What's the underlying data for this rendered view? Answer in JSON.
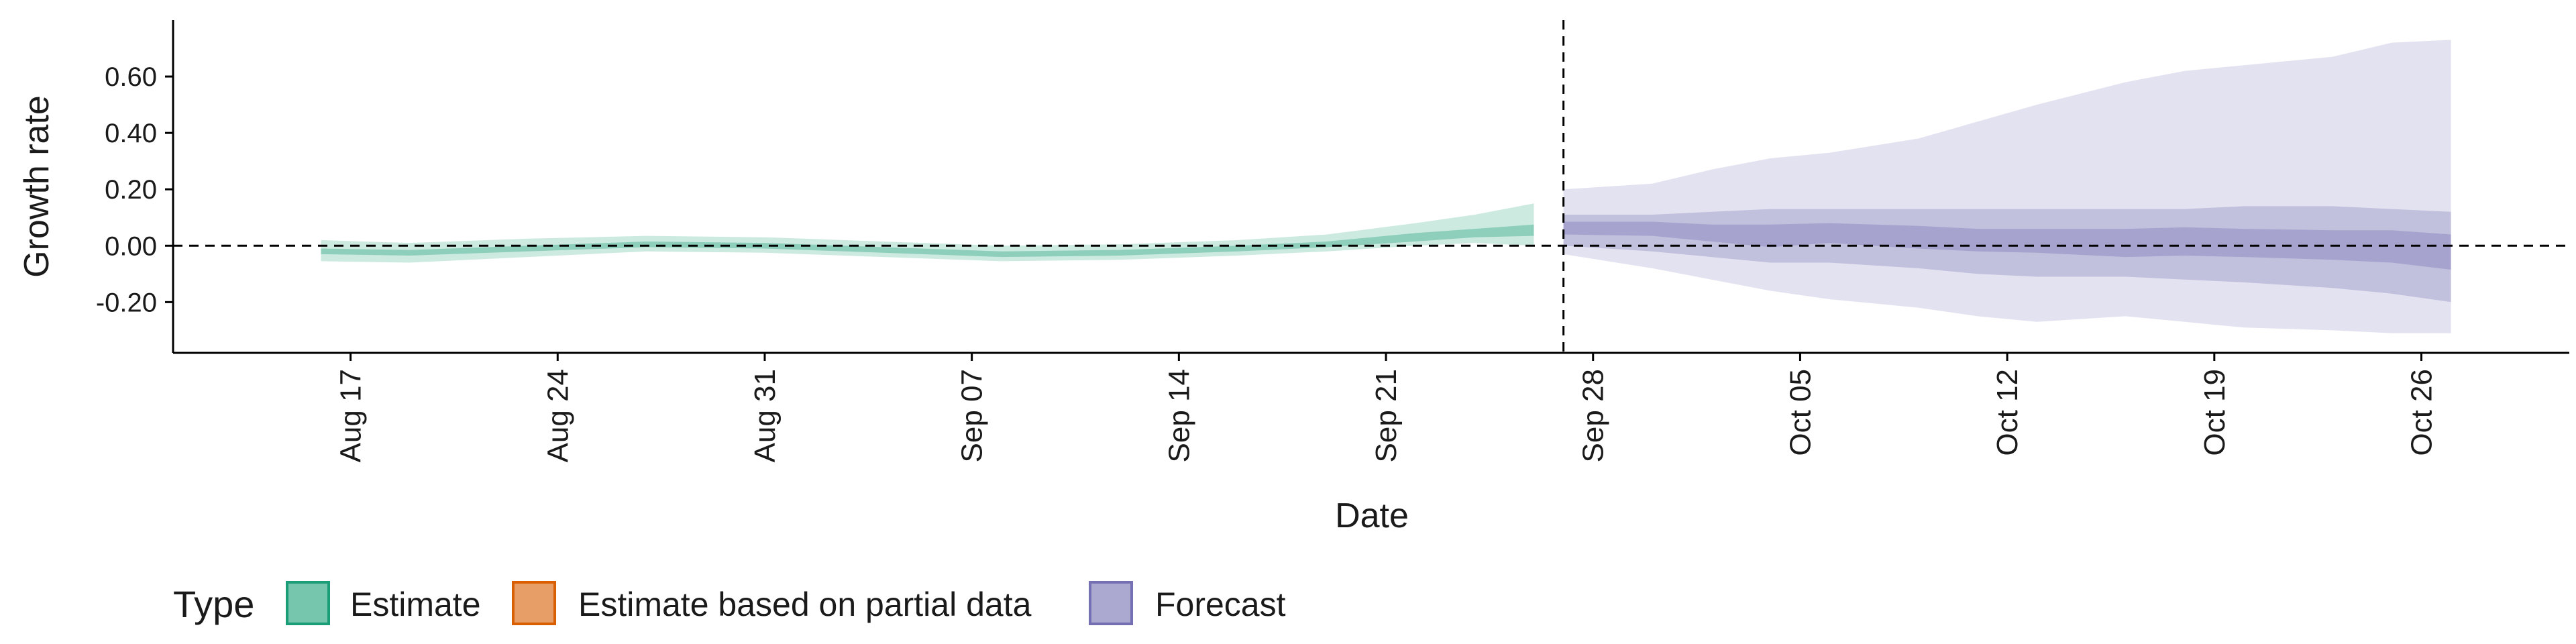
{
  "chart_data": {
    "type": "area",
    "xlabel": "Date",
    "ylabel": "Growth rate",
    "ylim": [
      -0.38,
      0.8
    ],
    "xlim": [
      "2020-08-11",
      "2020-10-31"
    ],
    "y_ticks": [
      "-0.20",
      "0.00",
      "0.20",
      "0.40",
      "0.60"
    ],
    "x_ticks": [
      {
        "date": "2020-08-17",
        "label": "Aug 17"
      },
      {
        "date": "2020-08-24",
        "label": "Aug 24"
      },
      {
        "date": "2020-08-31",
        "label": "Aug 31"
      },
      {
        "date": "2020-09-07",
        "label": "Sep 07"
      },
      {
        "date": "2020-09-14",
        "label": "Sep 14"
      },
      {
        "date": "2020-09-21",
        "label": "Sep 21"
      },
      {
        "date": "2020-09-28",
        "label": "Sep 28"
      },
      {
        "date": "2020-10-05",
        "label": "Oct 05"
      },
      {
        "date": "2020-10-12",
        "label": "Oct 12"
      },
      {
        "date": "2020-10-19",
        "label": "Oct 19"
      },
      {
        "date": "2020-10-26",
        "label": "Oct 26"
      }
    ],
    "reference_lines": {
      "horizontal_y": 0,
      "vertical_x": "2020-09-27"
    },
    "grid": false,
    "legend": {
      "title": "Type",
      "position": "bottom-left",
      "entries": [
        {
          "label": "Estimate",
          "color": "#1b9e77"
        },
        {
          "label": "Estimate based on partial data",
          "color": "#d95f02"
        },
        {
          "label": "Forecast",
          "color": "#7570b3"
        }
      ]
    },
    "series": [
      {
        "name": "Estimate",
        "color": "#1b9e77",
        "x": [
          "2020-08-16",
          "2020-08-19",
          "2020-08-23",
          "2020-08-27",
          "2020-08-31",
          "2020-09-04",
          "2020-09-08",
          "2020-09-12",
          "2020-09-16",
          "2020-09-19",
          "2020-09-22",
          "2020-09-24",
          "2020-09-26"
        ],
        "median": [
          -0.02,
          -0.025,
          -0.01,
          0.005,
          0.0,
          -0.015,
          -0.03,
          -0.025,
          -0.01,
          0.005,
          0.03,
          0.045,
          0.055
        ],
        "lower_50": [
          -0.03,
          -0.035,
          -0.02,
          -0.005,
          -0.01,
          -0.025,
          -0.04,
          -0.035,
          -0.02,
          -0.005,
          0.015,
          0.03,
          0.035
        ],
        "upper_50": [
          -0.01,
          -0.015,
          0.0,
          0.015,
          0.01,
          -0.005,
          -0.02,
          -0.015,
          0.0,
          0.015,
          0.045,
          0.06,
          0.075
        ],
        "lower_90": [
          -0.055,
          -0.06,
          -0.04,
          -0.02,
          -0.025,
          -0.04,
          -0.055,
          -0.05,
          -0.035,
          -0.02,
          0.0,
          0.01,
          0.0
        ],
        "upper_90": [
          0.02,
          0.01,
          0.025,
          0.035,
          0.03,
          0.015,
          0.0,
          0.005,
          0.02,
          0.04,
          0.08,
          0.11,
          0.15
        ]
      },
      {
        "name": "Forecast",
        "color": "#7570b3",
        "x": [
          "2020-09-27",
          "2020-09-30",
          "2020-10-02",
          "2020-10-04",
          "2020-10-06",
          "2020-10-09",
          "2020-10-11",
          "2020-10-13",
          "2020-10-16",
          "2020-10-18",
          "2020-10-20",
          "2020-10-23",
          "2020-10-25",
          "2020-10-27"
        ],
        "median": [
          0.065,
          0.06,
          0.05,
          0.035,
          0.05,
          0.03,
          0.02,
          0.02,
          0.01,
          0.01,
          0.02,
          0.01,
          0.01,
          0.0
        ],
        "lower_50": [
          0.04,
          0.035,
          0.015,
          -0.005,
          0.01,
          -0.01,
          -0.02,
          -0.025,
          -0.04,
          -0.035,
          -0.04,
          -0.05,
          -0.06,
          -0.085
        ],
        "upper_50": [
          0.085,
          0.085,
          0.075,
          0.075,
          0.08,
          0.07,
          0.06,
          0.06,
          0.06,
          0.065,
          0.06,
          0.055,
          0.055,
          0.04
        ],
        "lower_80": [
          0.0,
          -0.02,
          -0.04,
          -0.06,
          -0.06,
          -0.08,
          -0.1,
          -0.11,
          -0.11,
          -0.12,
          -0.13,
          -0.15,
          -0.17,
          -0.2
        ],
        "upper_80": [
          0.11,
          0.11,
          0.12,
          0.13,
          0.13,
          0.13,
          0.13,
          0.13,
          0.13,
          0.13,
          0.14,
          0.14,
          0.13,
          0.12
        ],
        "lower_90": [
          -0.03,
          -0.08,
          -0.12,
          -0.16,
          -0.19,
          -0.22,
          -0.25,
          -0.27,
          -0.25,
          -0.27,
          -0.29,
          -0.3,
          -0.31,
          -0.31
        ],
        "upper_90": [
          0.2,
          0.22,
          0.27,
          0.31,
          0.33,
          0.38,
          0.44,
          0.5,
          0.58,
          0.62,
          0.64,
          0.67,
          0.72,
          0.73
        ]
      }
    ]
  }
}
